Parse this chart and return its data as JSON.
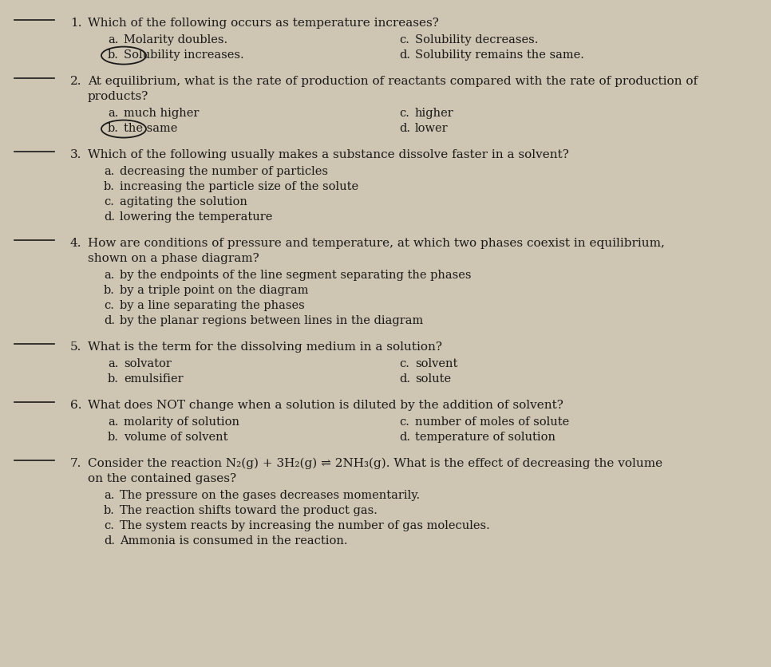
{
  "background_color": "#cec5b2",
  "text_color": "#1a1a1a",
  "body_fontsize": 10.5,
  "line_blank_color": "#1a1a1a",
  "questions": [
    {
      "number": "1.",
      "question": "Which of the following occurs as temperature increases?",
      "type": "two_col",
      "choices_left": [
        {
          "label": "a.",
          "text": "Molarity doubles.",
          "circle": false,
          "strike": true
        },
        {
          "label": "b.",
          "text": "Solubility increases.",
          "circle": true
        }
      ],
      "choices_right": [
        {
          "label": "c.",
          "text": "Solubility decreases."
        },
        {
          "label": "d.",
          "text": "Solubility remains the same."
        }
      ]
    },
    {
      "number": "2.",
      "question_lines": [
        "At equilibrium, what is the rate of production of reactants compared with the rate of production of",
        "products?"
      ],
      "type": "two_col",
      "choices_left": [
        {
          "label": "a.",
          "text": "much higher",
          "circle": false
        },
        {
          "label": "b.",
          "text": "the same",
          "circle": true
        }
      ],
      "choices_right": [
        {
          "label": "c.",
          "text": "higher"
        },
        {
          "label": "d.",
          "text": "lower"
        }
      ]
    },
    {
      "number": "3.",
      "question": "Which of the following usually makes a substance dissolve faster in a solvent?",
      "type": "four_col",
      "choices": [
        {
          "label": "a.",
          "text": "decreasing the number of particles"
        },
        {
          "label": "b.",
          "text": "increasing the particle size of the solute"
        },
        {
          "label": "c.",
          "text": "agitating the solution"
        },
        {
          "label": "d.",
          "text": "lowering the temperature"
        }
      ]
    },
    {
      "number": "4.",
      "question_lines": [
        "How are conditions of pressure and temperature, at which two phases coexist in equilibrium,",
        "shown on a phase diagram?"
      ],
      "type": "four_col",
      "choices": [
        {
          "label": "a.",
          "text": "by the endpoints of the line segment separating the phases"
        },
        {
          "label": "b.",
          "text": "by a triple point on the diagram"
        },
        {
          "label": "c.",
          "text": "by a line separating the phases"
        },
        {
          "label": "d.",
          "text": "by the planar regions between lines in the diagram"
        }
      ]
    },
    {
      "number": "5.",
      "question": "What is the term for the dissolving medium in a solution?",
      "type": "two_col",
      "choices_left": [
        {
          "label": "a.",
          "text": "solvator",
          "circle": false
        },
        {
          "label": "b.",
          "text": "emulsifier",
          "circle": false
        }
      ],
      "choices_right": [
        {
          "label": "c.",
          "text": "solvent"
        },
        {
          "label": "d.",
          "text": "solute"
        }
      ]
    },
    {
      "number": "6.",
      "question": "What does NOT change when a solution is diluted by the addition of solvent?",
      "type": "two_col",
      "choices_left": [
        {
          "label": "a.",
          "text": "molarity of solution",
          "circle": false
        },
        {
          "label": "b.",
          "text": "volume of solvent",
          "circle": false
        }
      ],
      "choices_right": [
        {
          "label": "c.",
          "text": "number of moles of solute"
        },
        {
          "label": "d.",
          "text": "temperature of solution"
        }
      ]
    },
    {
      "number": "7.",
      "question_lines": [
        "Consider the reaction N₂(g) + 3H₂(g) ⇌ 2NH₃(g). What is the effect of decreasing the volume",
        "on the contained gases?"
      ],
      "type": "four_col",
      "choices": [
        {
          "label": "a.",
          "text": "The pressure on the gases decreases momentarily."
        },
        {
          "label": "b.",
          "text": "The reaction shifts toward the product gas."
        },
        {
          "label": "c.",
          "text": "The system reacts by increasing the number of gas molecules."
        },
        {
          "label": "d.",
          "text": "Ammonia is consumed in the reaction."
        }
      ]
    }
  ]
}
